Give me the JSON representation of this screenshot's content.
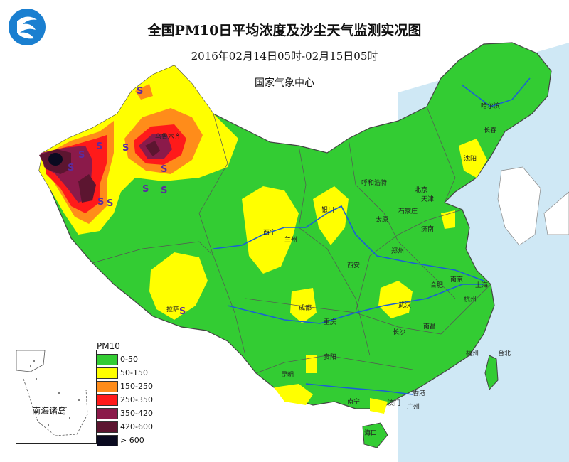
{
  "header": {
    "title": "全国PM10日平均浓度及沙尘天气监测实况图",
    "time_range": "2016年02月14日05时-02月15日05时",
    "agency": "国家气象中心"
  },
  "legend": {
    "title": "PM10",
    "items": [
      {
        "label": "0-50",
        "color": "#33cc33"
      },
      {
        "label": "50-150",
        "color": "#ffff00"
      },
      {
        "label": "150-250",
        "color": "#ff8c1a"
      },
      {
        "label": "250-350",
        "color": "#ff1a1a"
      },
      {
        "label": "350-420",
        "color": "#8b1a4a"
      },
      {
        "label": "420-600",
        "color": "#5c1530"
      },
      {
        "label": "> 600",
        "color": "#0a0a20"
      }
    ]
  },
  "inset": {
    "label": "南海诸岛"
  },
  "cities": [
    "乌鲁木齐",
    "哈尔滨",
    "长春",
    "沈阳",
    "呼和浩特",
    "北京",
    "天津",
    "石家庄",
    "太原",
    "济南",
    "西宁",
    "兰州",
    "银川",
    "西安",
    "郑州",
    "合肥",
    "南京",
    "上海",
    "杭州",
    "武汉",
    "成都",
    "重庆",
    "拉萨",
    "长沙",
    "南昌",
    "贵阳",
    "昆明",
    "南宁",
    "广州",
    "香港",
    "澳门",
    "海口",
    "台北",
    "福州"
  ],
  "dust_marker": "S",
  "colors": {
    "background": "#ffffff",
    "sea": "#cfe8f5",
    "border": "#555555",
    "river": "#1a5fd6"
  }
}
